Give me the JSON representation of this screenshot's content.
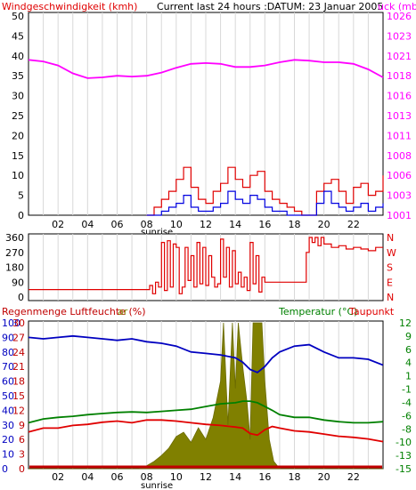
{
  "header": {
    "wind_title": "Windgeschwindigkeit (kmh)",
    "subtitle": "Current last 24 hours :DATUM: 23 Januar 2005",
    "pressure_title": "uck (mb)"
  },
  "colors": {
    "pressure": "#ff00ff",
    "wind_gust": "#e00000",
    "wind_avg": "#0000e0",
    "direction": "#e00000",
    "humidity": "#0000c0",
    "temperature": "#008000",
    "dewpoint": "#e00000",
    "solar": "#808000",
    "rain": "#c00000"
  },
  "chart_data": [
    {
      "type": "line",
      "name": "wind-pressure",
      "x_ticks": [
        "02",
        "04",
        "06",
        "08",
        "10",
        "12",
        "14",
        "16",
        "18",
        "20",
        "22"
      ],
      "x_annotation": "sunrise",
      "left_axis": {
        "label": "Windgeschwindigkeit (kmh)",
        "ticks": [
          "0",
          "5",
          "10",
          "15",
          "20",
          "25",
          "30",
          "35",
          "40",
          "45",
          "50"
        ],
        "range": [
          0,
          50
        ]
      },
      "right_axis": {
        "label": "uck (mb)",
        "ticks": [
          "1001",
          "1003",
          "1006",
          "1008",
          "1011",
          "1013",
          "1016",
          "1018",
          "1021",
          "1023",
          "1026"
        ],
        "range": [
          1001,
          1026
        ]
      },
      "series": [
        {
          "color": "#ff00ff",
          "axis": "right",
          "x": [
            0,
            1,
            2,
            3,
            4,
            5,
            6,
            7,
            8,
            9,
            10,
            11,
            12,
            13,
            14,
            15,
            16,
            17,
            18,
            19,
            20,
            21,
            22,
            23,
            24
          ],
          "values": [
            1020.5,
            1020.3,
            1019.8,
            1018.8,
            1018.2,
            1018.3,
            1018.5,
            1018.4,
            1018.5,
            1018.9,
            1019.5,
            1020.0,
            1020.1,
            1020.0,
            1019.6,
            1019.6,
            1019.8,
            1020.2,
            1020.5,
            1020.4,
            1020.2,
            1020.2,
            1020.0,
            1019.3,
            1018.3
          ]
        },
        {
          "color": "#e00000",
          "axis": "left",
          "x": [
            8.0,
            8.5,
            9.0,
            9.5,
            10.0,
            10.5,
            11.0,
            11.5,
            12.0,
            12.5,
            13.0,
            13.5,
            14.0,
            14.5,
            15.0,
            15.5,
            16.0,
            16.5,
            17.0,
            17.5,
            18.0,
            18.5,
            19.0,
            19.5,
            20.0,
            20.5,
            21.0,
            21.5,
            22.0,
            22.5,
            23.0,
            23.5,
            24.0
          ],
          "values": [
            0,
            2,
            4,
            6,
            9,
            12,
            7,
            4,
            3,
            6,
            8,
            12,
            9,
            7,
            10,
            11,
            6,
            4,
            3,
            2,
            1,
            0,
            0,
            6,
            8,
            9,
            6,
            3,
            7,
            8,
            5,
            6,
            10
          ]
        },
        {
          "color": "#0000e0",
          "axis": "left",
          "x": [
            8.0,
            8.5,
            9.0,
            9.5,
            10.0,
            10.5,
            11.0,
            11.5,
            12.0,
            12.5,
            13.0,
            13.5,
            14.0,
            14.5,
            15.0,
            15.5,
            16.0,
            16.5,
            17.0,
            17.5,
            18.0,
            18.5,
            19.0,
            19.5,
            20.0,
            20.5,
            21.0,
            21.5,
            22.0,
            22.5,
            23.0,
            23.5,
            24.0
          ],
          "values": [
            0,
            0,
            1,
            2,
            3,
            5,
            2,
            1,
            1,
            2,
            3,
            6,
            4,
            3,
            5,
            4,
            2,
            1,
            1,
            0,
            0,
            0,
            0,
            3,
            6,
            3,
            2,
            1,
            2,
            3,
            1,
            2,
            3
          ]
        }
      ]
    },
    {
      "type": "line",
      "name": "wind-direction",
      "x_ticks": [
        "02",
        "04",
        "06",
        "08",
        "10",
        "12",
        "14",
        "16",
        "18",
        "20",
        "22"
      ],
      "left_axis": {
        "ticks": [
          "0",
          "90",
          "180",
          "270",
          "360"
        ],
        "range": [
          0,
          360
        ]
      },
      "right_axis": {
        "ticks": [
          "N",
          "W",
          "S",
          "E",
          "N"
        ]
      },
      "series": [
        {
          "color": "#e00000",
          "x": [
            0,
            7.0,
            7.2,
            7.4,
            7.6,
            7.8,
            8.0,
            8.2,
            8.4,
            8.6,
            8.8,
            9.0,
            9.2,
            9.4,
            9.6,
            9.8,
            10.0,
            10.2,
            10.4,
            10.6,
            10.8,
            11.0,
            11.2,
            11.4,
            11.6,
            11.8,
            12.0,
            12.2,
            12.4,
            12.6,
            12.8,
            13.0,
            13.2,
            13.4,
            13.6,
            13.8,
            14.0,
            14.2,
            14.4,
            14.6,
            14.8,
            15.0,
            15.2,
            15.4,
            15.6,
            15.8,
            16.0,
            16.5,
            17.0,
            17.5,
            18.0,
            18.6,
            18.8,
            19.0,
            19.2,
            19.4,
            19.6,
            19.8,
            20.0,
            20.5,
            21.0,
            21.5,
            22.0,
            22.5,
            23.0,
            23.5,
            24.0
          ],
          "values": [
            45,
            45,
            45,
            45,
            45,
            45,
            45,
            70,
            20,
            90,
            60,
            330,
            40,
            340,
            60,
            320,
            300,
            20,
            60,
            300,
            100,
            250,
            60,
            330,
            80,
            300,
            70,
            250,
            120,
            60,
            80,
            350,
            120,
            300,
            60,
            280,
            80,
            150,
            60,
            120,
            40,
            330,
            80,
            250,
            30,
            120,
            90,
            90,
            90,
            90,
            90,
            90,
            270,
            360,
            330,
            360,
            310,
            360,
            320,
            300,
            310,
            290,
            300,
            290,
            280,
            300,
            300
          ]
        }
      ]
    },
    {
      "type": "line",
      "name": "humidity-temperature",
      "x_ticks": [
        "02",
        "04",
        "06",
        "08",
        "10",
        "12",
        "14",
        "16",
        "18",
        "20",
        "22"
      ],
      "x_annotation": "sunrise",
      "header_left": "Regenmenge Luftfeuchte (%)",
      "header_left_trail": "ar",
      "header_right": "Temperatur (°C)",
      "header_right2": "Taupunkt",
      "left_axis_humidity": {
        "ticks": [
          "0",
          "10",
          "20",
          "30",
          "40",
          "50",
          "60",
          "70",
          "80",
          "90",
          "100"
        ],
        "range": [
          0,
          100
        ]
      },
      "left_axis_rain": {
        "ticks": [
          "0",
          "3",
          "6",
          "9",
          "12",
          "15",
          "18",
          "21",
          "24",
          "27",
          "30"
        ],
        "range": [
          0,
          30
        ]
      },
      "right_axis": {
        "ticks": [
          "-15",
          "-13",
          "-10",
          "-8",
          "-6",
          "-4",
          "-1",
          "1",
          "4",
          "6",
          "9",
          "12"
        ],
        "range": [
          -15,
          12
        ]
      },
      "series": [
        {
          "color": "#0000c0",
          "axis": "humidity",
          "x": [
            0,
            1,
            2,
            3,
            4,
            5,
            6,
            7,
            8,
            9,
            10,
            11,
            12,
            13,
            14,
            14.5,
            15,
            15.5,
            16,
            16.5,
            17,
            18,
            19,
            20,
            21,
            22,
            23,
            24
          ],
          "values": [
            90,
            89,
            90,
            91,
            90,
            89,
            88,
            89,
            87,
            86,
            84,
            80,
            79,
            78,
            76,
            73,
            68,
            66,
            70,
            76,
            80,
            84,
            85,
            80,
            76,
            76,
            75,
            71
          ]
        },
        {
          "color": "#008000",
          "axis": "temperature",
          "x": [
            0,
            1,
            2,
            3,
            4,
            5,
            6,
            7,
            8,
            9,
            10,
            11,
            12,
            13,
            14,
            14.5,
            15,
            15.5,
            16,
            16.5,
            17,
            18,
            19,
            20,
            21,
            22,
            23,
            24
          ],
          "values": [
            -6.5,
            -5.8,
            -5.5,
            -5.3,
            -5.0,
            -4.8,
            -4.6,
            -4.5,
            -4.6,
            -4.4,
            -4.2,
            -4.0,
            -3.5,
            -3.0,
            -2.8,
            -2.5,
            -2.5,
            -2.8,
            -3.5,
            -4.2,
            -5.0,
            -5.5,
            -5.5,
            -6.0,
            -6.3,
            -6.5,
            -6.5,
            -6.3
          ]
        },
        {
          "color": "#e00000",
          "axis": "temperature",
          "x": [
            0,
            1,
            2,
            3,
            4,
            5,
            6,
            7,
            8,
            9,
            10,
            11,
            12,
            13,
            14,
            14.5,
            15,
            15.5,
            16,
            16.5,
            17,
            18,
            19,
            20,
            21,
            22,
            23,
            24
          ],
          "values": [
            -8.2,
            -7.5,
            -7.5,
            -7.0,
            -6.8,
            -6.4,
            -6.2,
            -6.5,
            -6.0,
            -6.0,
            -6.2,
            -6.5,
            -6.8,
            -7.0,
            -7.3,
            -7.5,
            -8.5,
            -8.8,
            -7.8,
            -7.2,
            -7.5,
            -8.0,
            -8.2,
            -8.6,
            -9.0,
            -9.2,
            -9.5,
            -10.0
          ]
        },
        {
          "color": "#808000",
          "axis": "solar",
          "type": "area",
          "x": [
            0,
            7.5,
            8.0,
            8.5,
            9.0,
            9.5,
            10.0,
            10.5,
            11.0,
            11.5,
            12.0,
            12.5,
            13.0,
            13.2,
            13.5,
            13.8,
            14.0,
            14.2,
            14.5,
            14.8,
            15.0,
            15.2,
            15.5,
            15.8,
            16.0,
            16.3,
            16.6,
            17.0,
            24.0
          ],
          "values": [
            0,
            0,
            2,
            5,
            9,
            14,
            22,
            25,
            18,
            28,
            20,
            35,
            60,
            100,
            30,
            100,
            55,
            100,
            70,
            45,
            20,
            100,
            100,
            100,
            60,
            20,
            5,
            0,
            0
          ]
        }
      ]
    }
  ]
}
